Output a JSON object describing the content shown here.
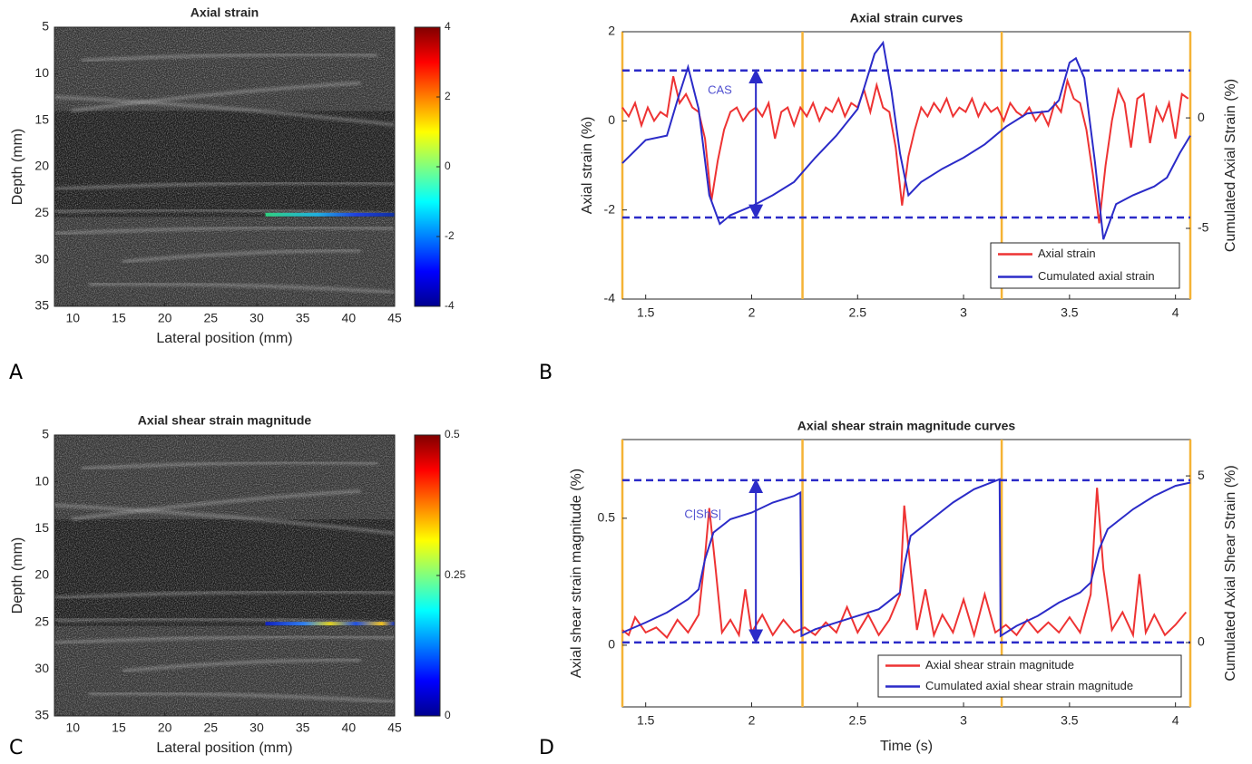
{
  "chart_data": [
    {
      "type": "heatmap",
      "label": "A",
      "title": "Axial strain",
      "xlabel": "Lateral position (mm)",
      "ylabel": "Depth (mm)",
      "xlim": [
        8,
        45
      ],
      "xticks": [
        10,
        15,
        20,
        25,
        30,
        35,
        40,
        45
      ],
      "ylim": [
        5,
        35
      ],
      "yticks": [
        5,
        10,
        15,
        20,
        25,
        30,
        35
      ],
      "invert_y": true,
      "clim": [
        -4,
        4
      ],
      "cticks": [
        -4,
        -2,
        0,
        2,
        4
      ],
      "colormap": "jet"
    },
    {
      "type": "line",
      "label": "B",
      "title": "Axial strain curves",
      "ylabel": "Axial strain (%)",
      "y2label": "Cumulated Axial Strain (%)",
      "xlim": [
        1.39,
        4.07
      ],
      "xticks": [
        1.5,
        2,
        2.5,
        3,
        3.5,
        4
      ],
      "ylim": [
        -4,
        2
      ],
      "yticks": [
        -4,
        -2,
        0,
        2
      ],
      "y2lim": [
        -8.2,
        3.9
      ],
      "y2ticks": [
        -5,
        0
      ],
      "vlines": [
        1.39,
        2.24,
        3.18,
        4.07
      ],
      "vline_color": "#f5b335",
      "hlines": [
        1.13,
        -2.17
      ],
      "hline_color": "#2b2bc8",
      "arrow": {
        "x": 2.02,
        "y": [
          1.13,
          -2.17
        ]
      },
      "annotation": {
        "text": "CAS",
        "x": 1.85,
        "y": 0.68
      },
      "legend": "lower right",
      "series": [
        {
          "name": "Axial strain",
          "color": "#ee3333",
          "x": [
            1.39,
            1.42,
            1.45,
            1.48,
            1.51,
            1.54,
            1.57,
            1.6,
            1.63,
            1.66,
            1.69,
            1.72,
            1.75,
            1.78,
            1.81,
            1.84,
            1.87,
            1.9,
            1.93,
            1.96,
            1.99,
            2.02,
            2.05,
            2.08,
            2.11,
            2.14,
            2.17,
            2.2,
            2.23,
            2.26,
            2.29,
            2.32,
            2.35,
            2.38,
            2.41,
            2.44,
            2.47,
            2.5,
            2.53,
            2.56,
            2.59,
            2.62,
            2.65,
            2.68,
            2.71,
            2.74,
            2.77,
            2.8,
            2.83,
            2.86,
            2.89,
            2.92,
            2.95,
            2.98,
            3.01,
            3.04,
            3.07,
            3.1,
            3.13,
            3.16,
            3.19,
            3.22,
            3.25,
            3.28,
            3.31,
            3.34,
            3.37,
            3.4,
            3.43,
            3.46,
            3.49,
            3.52,
            3.55,
            3.58,
            3.61,
            3.64,
            3.67,
            3.7,
            3.73,
            3.76,
            3.79,
            3.82,
            3.85,
            3.88,
            3.91,
            3.94,
            3.97,
            4.0,
            4.03,
            4.06
          ],
          "values": [
            0.3,
            0.1,
            0.4,
            -0.1,
            0.3,
            0,
            0.2,
            0.1,
            1,
            0.4,
            0.6,
            0.3,
            0.2,
            -0.4,
            -1.8,
            -0.9,
            -0.2,
            0.2,
            0.3,
            0,
            0.2,
            0.3,
            0.1,
            0.4,
            -0.4,
            0.2,
            0.3,
            -0.1,
            0.3,
            0.1,
            0.4,
            0,
            0.3,
            0.2,
            0.5,
            0.1,
            0.4,
            0.3,
            0.7,
            0.2,
            0.8,
            0.3,
            0.2,
            -0.6,
            -1.9,
            -0.8,
            -0.2,
            0.3,
            0.1,
            0.4,
            0.2,
            0.5,
            0.1,
            0.3,
            0.2,
            0.5,
            0.1,
            0.4,
            0.2,
            0.3,
            0,
            0.4,
            0.2,
            0.1,
            0.3,
            0,
            0.2,
            -0.1,
            0.4,
            0.2,
            0.9,
            0.5,
            0.4,
            -0.2,
            -1.2,
            -2.3,
            -1,
            0,
            0.7,
            0.4,
            -0.6,
            0.5,
            0.6,
            -0.5,
            0.3,
            0,
            0.4,
            -0.4,
            0.6,
            0.5
          ]
        },
        {
          "name": "Cumulated axial strain",
          "color": "#2b2bc8",
          "axis": "y2",
          "x": [
            1.39,
            1.5,
            1.6,
            1.65,
            1.7,
            1.75,
            1.8,
            1.85,
            1.9,
            2.0,
            2.1,
            2.2,
            2.3,
            2.4,
            2.5,
            2.58,
            2.62,
            2.66,
            2.7,
            2.74,
            2.8,
            2.9,
            3.0,
            3.1,
            3.2,
            3.3,
            3.4,
            3.45,
            3.5,
            3.53,
            3.57,
            3.62,
            3.66,
            3.72,
            3.8,
            3.9,
            3.96,
            4.02,
            4.07
          ],
          "values": [
            -2.05,
            -1,
            -0.8,
            0.8,
            2.3,
            0.4,
            -3.5,
            -4.8,
            -4.4,
            -4,
            -3.5,
            -2.9,
            -1.8,
            -0.8,
            0.4,
            2.9,
            3.4,
            1.2,
            -1.6,
            -3.5,
            -2.9,
            -2.3,
            -1.8,
            -1.2,
            -0.4,
            0.2,
            0.3,
            0.8,
            2.5,
            2.7,
            1.8,
            -2,
            -5.5,
            -3.9,
            -3.5,
            -3.1,
            -2.7,
            -1.6,
            -0.8
          ]
        }
      ]
    },
    {
      "type": "heatmap",
      "label": "C",
      "title": "Axial shear strain magnitude",
      "xlabel": "Lateral position (mm)",
      "ylabel": "Depth (mm)",
      "xlim": [
        8,
        45
      ],
      "xticks": [
        10,
        15,
        20,
        25,
        30,
        35,
        40,
        45
      ],
      "ylim": [
        5,
        35
      ],
      "yticks": [
        5,
        10,
        15,
        20,
        25,
        30,
        35
      ],
      "invert_y": true,
      "clim": [
        0,
        0.5
      ],
      "cticks": [
        0,
        0.25,
        0.5
      ],
      "colormap": "jet"
    },
    {
      "type": "line",
      "label": "D",
      "title": "Axial shear strain magnitude curves",
      "xlabel": "Time (s)",
      "ylabel": "Axial shear strain magnitude (%)",
      "y2label": "Cumulated Axial Shear Strain (%)",
      "xlim": [
        1.39,
        4.07
      ],
      "xticks": [
        1.5,
        2,
        2.5,
        3,
        3.5,
        4
      ],
      "ylim": [
        -0.243,
        0.81
      ],
      "yticks": [
        0,
        0.5
      ],
      "y2lim": [
        -1.93,
        6.09
      ],
      "y2ticks": [
        0,
        5
      ],
      "vlines": [
        1.39,
        2.24,
        3.18,
        4.07
      ],
      "vline_color": "#f5b335",
      "hlines": [
        0.65,
        0.011
      ],
      "hline_color": "#2b2bc8",
      "arrow": {
        "x": 2.02,
        "y": [
          0.65,
          0.011
        ]
      },
      "annotation": {
        "text": "C|ShS|",
        "x": 1.77,
        "y": 0.514
      },
      "legend": "lower right",
      "series": [
        {
          "name": "Axial shear strain magnitude",
          "color": "#ee3333",
          "x": [
            1.39,
            1.42,
            1.45,
            1.5,
            1.55,
            1.6,
            1.65,
            1.7,
            1.75,
            1.78,
            1.8,
            1.83,
            1.86,
            1.9,
            1.94,
            1.97,
            2.0,
            2.05,
            2.1,
            2.15,
            2.2,
            2.25,
            2.3,
            2.35,
            2.4,
            2.45,
            2.5,
            2.55,
            2.6,
            2.65,
            2.7,
            2.72,
            2.75,
            2.78,
            2.82,
            2.86,
            2.9,
            2.95,
            3.0,
            3.05,
            3.1,
            3.15,
            3.2,
            3.25,
            3.3,
            3.35,
            3.4,
            3.45,
            3.5,
            3.55,
            3.6,
            3.63,
            3.66,
            3.7,
            3.75,
            3.8,
            3.83,
            3.86,
            3.9,
            3.95,
            4.0,
            4.05
          ],
          "values": [
            0.06,
            0.04,
            0.11,
            0.05,
            0.07,
            0.03,
            0.1,
            0.05,
            0.12,
            0.35,
            0.54,
            0.3,
            0.05,
            0.1,
            0.04,
            0.22,
            0.05,
            0.12,
            0.04,
            0.1,
            0.05,
            0.07,
            0.04,
            0.09,
            0.05,
            0.15,
            0.05,
            0.12,
            0.04,
            0.1,
            0.2,
            0.55,
            0.3,
            0.06,
            0.22,
            0.04,
            0.12,
            0.05,
            0.18,
            0.04,
            0.2,
            0.05,
            0.08,
            0.04,
            0.1,
            0.05,
            0.09,
            0.05,
            0.11,
            0.05,
            0.2,
            0.62,
            0.3,
            0.06,
            0.13,
            0.04,
            0.28,
            0.05,
            0.12,
            0.04,
            0.08,
            0.13
          ]
        },
        {
          "name": "Cumulated axial shear strain magnitude",
          "color": "#2b2bc8",
          "axis": "y2",
          "x": [
            1.39,
            1.5,
            1.6,
            1.7,
            1.75,
            1.78,
            1.82,
            1.9,
            2.0,
            2.1,
            2.2,
            2.23,
            2.235,
            2.3,
            2.4,
            2.5,
            2.6,
            2.7,
            2.72,
            2.75,
            2.85,
            2.95,
            3.05,
            3.17,
            3.175,
            3.25,
            3.35,
            3.45,
            3.55,
            3.6,
            3.64,
            3.68,
            3.8,
            3.9,
            4.0,
            4.07
          ],
          "values": [
            0.3,
            0.6,
            0.9,
            1.3,
            1.6,
            2.5,
            3.3,
            3.7,
            3.9,
            4.2,
            4.4,
            4.5,
            0.2,
            0.4,
            0.6,
            0.8,
            1,
            1.5,
            2.3,
            3.2,
            3.7,
            4.2,
            4.6,
            4.9,
            0.2,
            0.5,
            0.8,
            1.2,
            1.5,
            1.8,
            2.8,
            3.4,
            4,
            4.4,
            4.7,
            4.8
          ]
        }
      ]
    }
  ]
}
